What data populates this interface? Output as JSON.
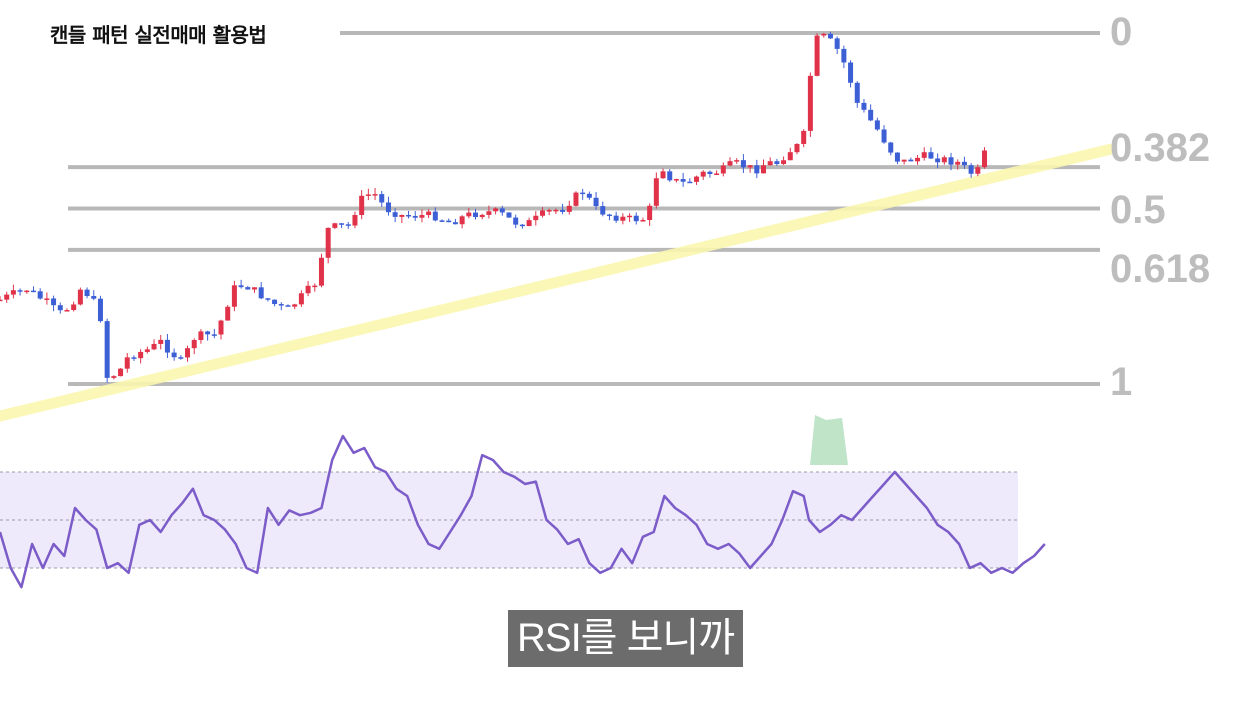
{
  "title": "캔들 패턴 실전매매 활용법",
  "caption": "RSI를 보니까",
  "colors": {
    "bull": "#e0334a",
    "bear": "#3d5fd6",
    "fib_line": "#b8b8b8",
    "fib_label": "#bdbdbd",
    "trendline": "#fbf7b0",
    "rsi_line": "#7b5cc8",
    "rsi_band": "#efeafb",
    "rsi_overbought_fill": "#a5d9b0"
  },
  "chart_data": [
    {
      "type": "candlestick",
      "title": "",
      "fib_levels": [
        {
          "label": "0",
          "value": 0
        },
        {
          "label": "0.382",
          "value": 0.382
        },
        {
          "label": "0.5",
          "value": 0.5
        },
        {
          "label": "0.618",
          "value": 0.618
        },
        {
          "label": "1",
          "value": 1
        }
      ],
      "close_path": [
        [
          0,
          0.76
        ],
        [
          6,
          0.74
        ],
        [
          10,
          0.73
        ],
        [
          14,
          0.75
        ],
        [
          18,
          0.77
        ],
        [
          22,
          0.8
        ],
        [
          26,
          0.78
        ],
        [
          30,
          0.73
        ],
        [
          34,
          0.75
        ],
        [
          38,
          0.82
        ],
        [
          40,
          0.98
        ],
        [
          44,
          0.97
        ],
        [
          48,
          0.92
        ],
        [
          52,
          0.91
        ],
        [
          56,
          0.9
        ],
        [
          60,
          0.88
        ],
        [
          64,
          0.91
        ],
        [
          68,
          0.94
        ],
        [
          72,
          0.87
        ],
        [
          76,
          0.86
        ],
        [
          80,
          0.86
        ],
        [
          82,
          0.83
        ],
        [
          86,
          0.75
        ],
        [
          88,
          0.72
        ],
        [
          92,
          0.72
        ],
        [
          96,
          0.74
        ],
        [
          100,
          0.76
        ],
        [
          104,
          0.78
        ],
        [
          108,
          0.79
        ],
        [
          110,
          0.77
        ],
        [
          114,
          0.74
        ],
        [
          118,
          0.71
        ],
        [
          122,
          0.56
        ],
        [
          126,
          0.55
        ],
        [
          130,
          0.55
        ],
        [
          133,
          0.5
        ],
        [
          136,
          0.46
        ],
        [
          140,
          0.46
        ],
        [
          144,
          0.5
        ],
        [
          150,
          0.52
        ],
        [
          156,
          0.52
        ],
        [
          162,
          0.52
        ],
        [
          168,
          0.54
        ],
        [
          174,
          0.52
        ],
        [
          180,
          0.51
        ],
        [
          186,
          0.51
        ],
        [
          192,
          0.54
        ],
        [
          198,
          0.54
        ],
        [
          204,
          0.51
        ],
        [
          210,
          0.5
        ],
        [
          214,
          0.47
        ],
        [
          218,
          0.45
        ],
        [
          222,
          0.5
        ],
        [
          228,
          0.52
        ],
        [
          234,
          0.53
        ],
        [
          240,
          0.53
        ],
        [
          242,
          0.52
        ],
        [
          246,
          0.37
        ],
        [
          250,
          0.41
        ],
        [
          254,
          0.43
        ],
        [
          258,
          0.42
        ],
        [
          262,
          0.4
        ],
        [
          266,
          0.4
        ],
        [
          270,
          0.39
        ],
        [
          274,
          0.37
        ],
        [
          278,
          0.38
        ],
        [
          282,
          0.39
        ],
        [
          286,
          0.37
        ],
        [
          290,
          0.37
        ],
        [
          294,
          0.34
        ],
        [
          298,
          0.32
        ],
        [
          300,
          0.29
        ],
        [
          304,
          0.02
        ],
        [
          308,
          0.01
        ],
        [
          312,
          0.04
        ],
        [
          316,
          0.1
        ],
        [
          320,
          0.2
        ],
        [
          324,
          0.24
        ],
        [
          328,
          0.28
        ],
        [
          332,
          0.33
        ],
        [
          336,
          0.37
        ],
        [
          340,
          0.36
        ],
        [
          346,
          0.35
        ],
        [
          352,
          0.36
        ],
        [
          358,
          0.37
        ],
        [
          362,
          0.4
        ],
        [
          366,
          0.39
        ],
        [
          368,
          0.33
        ]
      ],
      "trendline_from": {
        "x": 0,
        "y": 1.02
      },
      "trendline_to": {
        "x": 380,
        "y": 0.34
      }
    },
    {
      "type": "line",
      "title": "",
      "band": {
        "upper": 70,
        "middle": 50,
        "lower": 30
      },
      "values": [
        [
          0,
          45
        ],
        [
          4,
          30
        ],
        [
          8,
          22
        ],
        [
          12,
          40
        ],
        [
          16,
          30
        ],
        [
          20,
          40
        ],
        [
          24,
          35
        ],
        [
          28,
          55
        ],
        [
          32,
          50
        ],
        [
          36,
          46
        ],
        [
          40,
          30
        ],
        [
          44,
          32
        ],
        [
          48,
          28
        ],
        [
          52,
          48
        ],
        [
          56,
          50
        ],
        [
          60,
          45
        ],
        [
          64,
          52
        ],
        [
          68,
          57
        ],
        [
          72,
          63
        ],
        [
          76,
          52
        ],
        [
          80,
          50
        ],
        [
          84,
          46
        ],
        [
          88,
          40
        ],
        [
          92,
          30
        ],
        [
          96,
          28
        ],
        [
          100,
          55
        ],
        [
          104,
          48
        ],
        [
          108,
          54
        ],
        [
          112,
          52
        ],
        [
          116,
          53
        ],
        [
          120,
          55
        ],
        [
          124,
          75
        ],
        [
          128,
          85
        ],
        [
          132,
          78
        ],
        [
          136,
          80
        ],
        [
          140,
          72
        ],
        [
          144,
          70
        ],
        [
          148,
          63
        ],
        [
          152,
          60
        ],
        [
          156,
          48
        ],
        [
          160,
          40
        ],
        [
          164,
          38
        ],
        [
          168,
          45
        ],
        [
          172,
          52
        ],
        [
          176,
          60
        ],
        [
          180,
          77
        ],
        [
          184,
          75
        ],
        [
          188,
          70
        ],
        [
          192,
          68
        ],
        [
          196,
          65
        ],
        [
          200,
          66
        ],
        [
          204,
          50
        ],
        [
          208,
          46
        ],
        [
          212,
          40
        ],
        [
          216,
          42
        ],
        [
          220,
          32
        ],
        [
          224,
          28
        ],
        [
          228,
          30
        ],
        [
          232,
          38
        ],
        [
          236,
          32
        ],
        [
          240,
          43
        ],
        [
          244,
          45
        ],
        [
          248,
          60
        ],
        [
          252,
          55
        ],
        [
          256,
          52
        ],
        [
          260,
          48
        ],
        [
          264,
          40
        ],
        [
          268,
          38
        ],
        [
          272,
          40
        ],
        [
          276,
          36
        ],
        [
          280,
          30
        ],
        [
          284,
          35
        ],
        [
          288,
          40
        ],
        [
          292,
          50
        ],
        [
          296,
          62
        ],
        [
          300,
          60
        ],
        [
          302,
          50
        ],
        [
          306,
          45
        ],
        [
          310,
          48
        ],
        [
          314,
          52
        ],
        [
          318,
          50
        ],
        [
          322,
          55
        ],
        [
          326,
          60
        ],
        [
          330,
          65
        ],
        [
          334,
          70
        ],
        [
          338,
          65
        ],
        [
          342,
          60
        ],
        [
          346,
          55
        ],
        [
          350,
          48
        ],
        [
          354,
          45
        ],
        [
          358,
          40
        ],
        [
          362,
          30
        ],
        [
          366,
          32
        ],
        [
          370,
          28
        ],
        [
          374,
          30
        ],
        [
          378,
          28
        ],
        [
          382,
          32
        ],
        [
          386,
          35
        ],
        [
          390,
          40
        ]
      ]
    }
  ]
}
